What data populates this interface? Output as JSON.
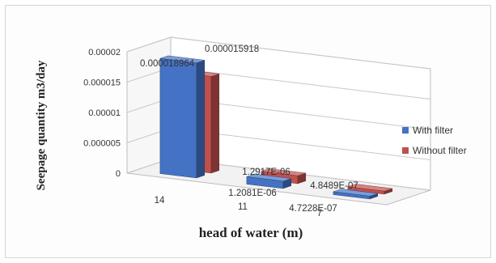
{
  "chart_data": {
    "type": "bar",
    "subtype": "3d-clustered-column",
    "xlabel": "head of water (m)",
    "ylabel": "Seepage quantity m3/day",
    "categories": [
      "14",
      "11",
      "7"
    ],
    "ylim": [
      0,
      2e-05
    ],
    "yticks": [
      "0",
      "0.000005",
      "0.00001",
      "0.000015",
      "0.00002"
    ],
    "grid": true,
    "legend_position": "right",
    "series": [
      {
        "name": "With filter",
        "color": "#4472c4",
        "values": [
          1.8964e-05,
          1.2081e-06,
          4.7228e-07
        ],
        "labels": [
          "0.000018964",
          "1.2081E-06",
          "4.7228E-07"
        ]
      },
      {
        "name": "Without filter",
        "color": "#c0504d",
        "values": [
          1.5918e-05,
          1.2917e-06,
          4.8489e-07
        ],
        "labels": [
          "0.000015918",
          "1.2917E-06",
          "4.8489E-07"
        ]
      }
    ]
  }
}
